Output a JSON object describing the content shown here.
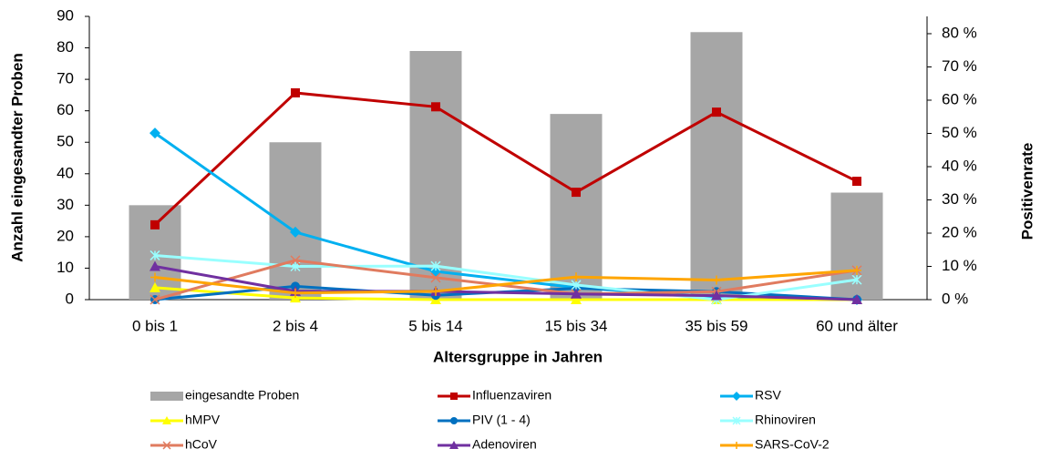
{
  "chart_data": {
    "type": "combo",
    "x_label": "Altersgruppe in Jahren",
    "y_label": "Anzahl eingesandter Proben",
    "y2_label": "Positivenrate",
    "categories": [
      "0 bis 1",
      "2 bis 4",
      "5 bis 14",
      "15 bis 34",
      "35 bis 59",
      "60 und älter"
    ],
    "ylim": [
      0,
      90
    ],
    "yticks": [
      0,
      10,
      20,
      30,
      40,
      50,
      60,
      70,
      80,
      90
    ],
    "y2lim": [
      0,
      85.2
    ],
    "y2ticks": [
      {
        "value": 0,
        "label": "0 %"
      },
      {
        "value": 10,
        "label": "10 %"
      },
      {
        "value": 20,
        "label": "20 %"
      },
      {
        "value": 30,
        "label": "30 %"
      },
      {
        "value": 40,
        "label": "40 %"
      },
      {
        "value": 50,
        "label": "50 %"
      },
      {
        "value": 60,
        "label": "60 %"
      },
      {
        "value": 70,
        "label": "70 %"
      },
      {
        "value": 80,
        "label": "80 %"
      }
    ],
    "series": [
      {
        "name": "eingesandte Proben",
        "type": "bar",
        "color": "#a6a6a6",
        "values": [
          30,
          50,
          79,
          59,
          85,
          34
        ]
      },
      {
        "name": "Influenzaviren",
        "type": "line",
        "axis": "y2",
        "color": "#c00000",
        "marker": "square",
        "values": [
          22.5,
          62.2,
          58,
          32.3,
          56.4,
          35.6
        ]
      },
      {
        "name": "RSV",
        "type": "line",
        "axis": "y2",
        "color": "#00b0f0",
        "marker": "diamond",
        "values": [
          50.1,
          20.3,
          8.5,
          3.6,
          0.8,
          0
        ]
      },
      {
        "name": "hMPV",
        "type": "line",
        "axis": "y2",
        "color": "#ffff00",
        "marker": "triangle",
        "values": [
          3.6,
          0.5,
          0,
          0,
          0,
          0
        ]
      },
      {
        "name": "PIV (1 - 4)",
        "type": "line",
        "axis": "y2",
        "color": "#0070c0",
        "marker": "circle",
        "values": [
          0,
          4,
          1.3,
          3.4,
          2.4,
          0
        ]
      },
      {
        "name": "Rhinoviren",
        "type": "line",
        "axis": "y2",
        "color": "#99ffff",
        "marker": "asterisk",
        "values": [
          13.3,
          10,
          10.1,
          4.4,
          0,
          6
        ]
      },
      {
        "name": "hCoV",
        "type": "line",
        "axis": "y2",
        "color": "#e07b5f",
        "marker": "x",
        "values": [
          0,
          11.8,
          6.6,
          1.7,
          2.4,
          8.8
        ]
      },
      {
        "name": "Adenoviren",
        "type": "line",
        "axis": "y2",
        "color": "#7030a0",
        "marker": "triangle",
        "values": [
          10,
          2.5,
          2.5,
          1.7,
          1.2,
          0
        ]
      },
      {
        "name": "SARS-CoV-2",
        "type": "line",
        "axis": "y2",
        "color": "#ffa500",
        "marker": "plus",
        "values": [
          6.7,
          2,
          2.5,
          6.8,
          5.9,
          8.8
        ]
      }
    ]
  }
}
